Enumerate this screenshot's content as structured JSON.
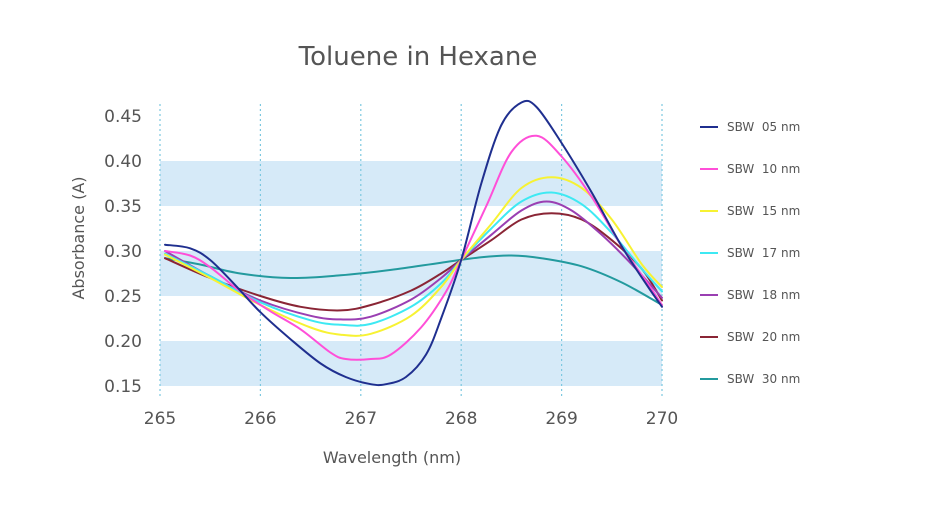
{
  "chart_data": {
    "type": "line",
    "title": "Toluene in Hexane",
    "xlabel": "Wavelength (nm)",
    "ylabel": "Absorbance (A)",
    "xlim": [
      265,
      270
    ],
    "ylim": [
      0.15,
      0.45
    ],
    "x_ticks": [
      "265",
      "266",
      "267",
      "268",
      "269",
      "270"
    ],
    "y_ticks": [
      "0.15",
      "0.20",
      "0.25",
      "0.30",
      "0.35",
      "0.40",
      "0.45"
    ],
    "grid": "vertical dotted lines at each x tick; alternating light-blue horizontal bands",
    "legend_position": "right",
    "band_color": "#d6eaf8",
    "grid_color": "#7cc8e0",
    "series": [
      {
        "name": "SBW  05 nm",
        "color": "#1f2f8f",
        "points": [
          [
            265.05,
            0.307
          ],
          [
            265.3,
            0.303
          ],
          [
            265.5,
            0.29
          ],
          [
            265.75,
            0.262
          ],
          [
            266.0,
            0.232
          ],
          [
            266.3,
            0.202
          ],
          [
            266.6,
            0.175
          ],
          [
            266.85,
            0.16
          ],
          [
            267.1,
            0.152
          ],
          [
            267.25,
            0.152
          ],
          [
            267.45,
            0.16
          ],
          [
            267.65,
            0.185
          ],
          [
            267.8,
            0.225
          ],
          [
            268.0,
            0.29
          ],
          [
            268.2,
            0.375
          ],
          [
            268.4,
            0.44
          ],
          [
            268.6,
            0.465
          ],
          [
            268.75,
            0.46
          ],
          [
            269.0,
            0.42
          ],
          [
            269.3,
            0.365
          ],
          [
            269.6,
            0.305
          ],
          [
            269.85,
            0.262
          ],
          [
            270.0,
            0.238
          ]
        ]
      },
      {
        "name": "SBW  10 nm",
        "color": "#ff4fd8",
        "points": [
          [
            265.05,
            0.3
          ],
          [
            265.3,
            0.295
          ],
          [
            265.5,
            0.282
          ],
          [
            265.8,
            0.255
          ],
          [
            266.1,
            0.233
          ],
          [
            266.4,
            0.213
          ],
          [
            266.7,
            0.187
          ],
          [
            266.85,
            0.18
          ],
          [
            267.1,
            0.18
          ],
          [
            267.3,
            0.185
          ],
          [
            267.6,
            0.215
          ],
          [
            267.85,
            0.255
          ],
          [
            268.0,
            0.29
          ],
          [
            268.25,
            0.35
          ],
          [
            268.5,
            0.41
          ],
          [
            268.75,
            0.428
          ],
          [
            269.0,
            0.405
          ],
          [
            269.3,
            0.36
          ],
          [
            269.6,
            0.305
          ],
          [
            269.85,
            0.265
          ],
          [
            270.0,
            0.24
          ]
        ]
      },
      {
        "name": "SBW  15 nm",
        "color": "#f7f233",
        "points": [
          [
            265.05,
            0.296
          ],
          [
            265.5,
            0.27
          ],
          [
            266.0,
            0.24
          ],
          [
            266.5,
            0.215
          ],
          [
            266.8,
            0.207
          ],
          [
            267.1,
            0.208
          ],
          [
            267.5,
            0.228
          ],
          [
            267.8,
            0.26
          ],
          [
            268.0,
            0.29
          ],
          [
            268.3,
            0.33
          ],
          [
            268.6,
            0.37
          ],
          [
            268.9,
            0.382
          ],
          [
            269.2,
            0.37
          ],
          [
            269.5,
            0.335
          ],
          [
            269.8,
            0.285
          ],
          [
            270.0,
            0.26
          ]
        ]
      },
      {
        "name": "SBW  17 nm",
        "color": "#3ee9f3",
        "points": [
          [
            265.05,
            0.297
          ],
          [
            265.5,
            0.272
          ],
          [
            266.0,
            0.243
          ],
          [
            266.5,
            0.223
          ],
          [
            266.8,
            0.218
          ],
          [
            267.1,
            0.219
          ],
          [
            267.5,
            0.238
          ],
          [
            267.8,
            0.264
          ],
          [
            268.0,
            0.29
          ],
          [
            268.3,
            0.325
          ],
          [
            268.6,
            0.355
          ],
          [
            268.9,
            0.365
          ],
          [
            269.2,
            0.352
          ],
          [
            269.5,
            0.32
          ],
          [
            269.8,
            0.28
          ],
          [
            270.0,
            0.255
          ]
        ]
      },
      {
        "name": "SBW  18 nm",
        "color": "#9a3fb2",
        "points": [
          [
            265.05,
            0.3
          ],
          [
            265.5,
            0.272
          ],
          [
            266.0,
            0.245
          ],
          [
            266.5,
            0.228
          ],
          [
            266.8,
            0.224
          ],
          [
            267.1,
            0.227
          ],
          [
            267.5,
            0.246
          ],
          [
            267.8,
            0.27
          ],
          [
            268.0,
            0.29
          ],
          [
            268.3,
            0.318
          ],
          [
            268.6,
            0.345
          ],
          [
            268.85,
            0.355
          ],
          [
            269.1,
            0.345
          ],
          [
            269.4,
            0.318
          ],
          [
            269.7,
            0.285
          ],
          [
            270.0,
            0.248
          ]
        ]
      },
      {
        "name": "SBW  20 nm",
        "color": "#8a2535",
        "points": [
          [
            265.05,
            0.292
          ],
          [
            265.5,
            0.27
          ],
          [
            266.0,
            0.25
          ],
          [
            266.4,
            0.238
          ],
          [
            266.8,
            0.234
          ],
          [
            267.1,
            0.24
          ],
          [
            267.5,
            0.256
          ],
          [
            267.8,
            0.275
          ],
          [
            268.0,
            0.29
          ],
          [
            268.3,
            0.312
          ],
          [
            268.6,
            0.335
          ],
          [
            268.9,
            0.342
          ],
          [
            269.2,
            0.335
          ],
          [
            269.5,
            0.312
          ],
          [
            269.8,
            0.28
          ],
          [
            270.0,
            0.245
          ]
        ]
      },
      {
        "name": "SBW  30 nm",
        "color": "#239a9e",
        "points": [
          [
            265.05,
            0.292
          ],
          [
            265.4,
            0.285
          ],
          [
            265.8,
            0.275
          ],
          [
            266.3,
            0.27
          ],
          [
            266.8,
            0.273
          ],
          [
            267.3,
            0.279
          ],
          [
            267.8,
            0.287
          ],
          [
            268.2,
            0.293
          ],
          [
            268.5,
            0.295
          ],
          [
            268.8,
            0.292
          ],
          [
            269.2,
            0.283
          ],
          [
            269.6,
            0.265
          ],
          [
            270.0,
            0.24
          ]
        ]
      }
    ]
  }
}
